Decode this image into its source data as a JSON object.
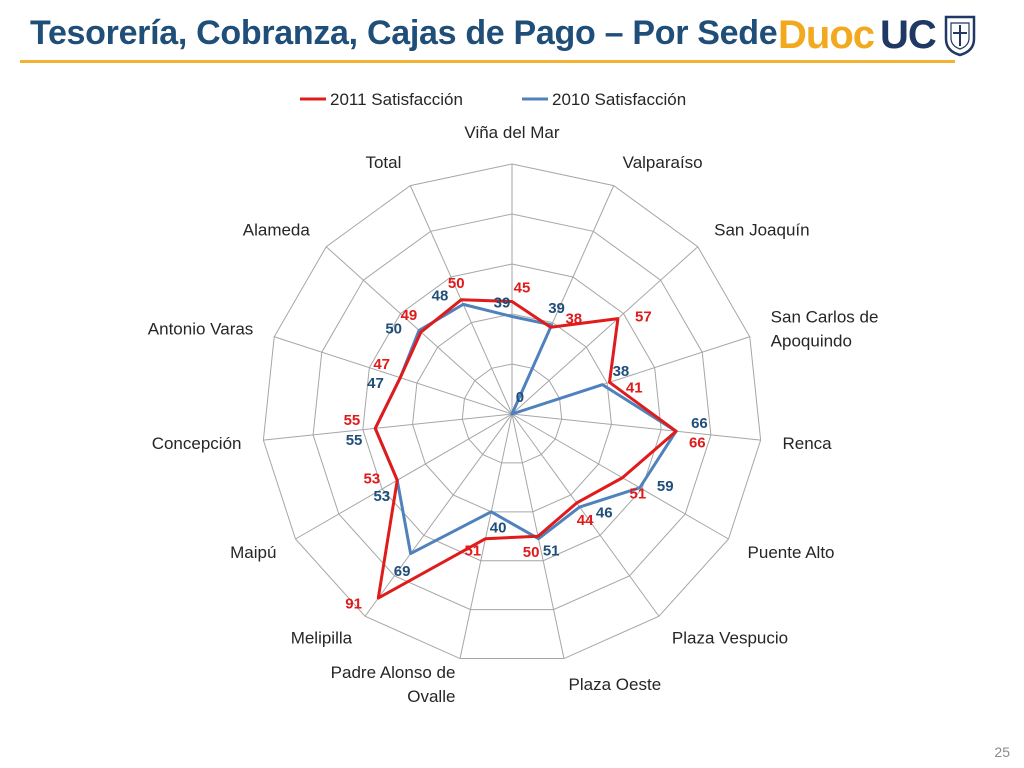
{
  "slide": {
    "title": "Tesorería, Cobranza, Cajas de Pago – Por Sede",
    "page_number": "25"
  },
  "logo": {
    "duoc": "Duoc",
    "uc": "UC"
  },
  "colors": {
    "title": "#1f4e79",
    "accent": "#f2b233",
    "grid": "#a6a6a6"
  },
  "chart_data": {
    "type": "radar",
    "title": "",
    "legend_position": "top",
    "rlim": [
      0,
      100
    ],
    "gridlines": 5,
    "categories": [
      "Viña del Mar",
      "Valparaíso",
      "San Joaquín",
      "San Carlos de Apoquindo",
      "Renca",
      "Puente Alto",
      "Plaza Vespucio",
      "Plaza Oeste",
      "Padre Alonso de Ovalle",
      "Melipilla",
      "Maipú",
      "Concepción",
      "Antonio Varas",
      "Alameda",
      "Total"
    ],
    "series": [
      {
        "name": "2011 Satisfacción",
        "color": "#e01b1b",
        "values": [
          45,
          38,
          57,
          41,
          66,
          51,
          44,
          50,
          51,
          91,
          53,
          55,
          47,
          49,
          50
        ]
      },
      {
        "name": "2010 Satisfacción",
        "color": "#4f81bd",
        "label_color": "#1f4e79",
        "values": [
          39,
          39,
          0,
          38,
          66,
          59,
          46,
          51,
          40,
          69,
          53,
          55,
          47,
          50,
          48
        ]
      }
    ]
  }
}
